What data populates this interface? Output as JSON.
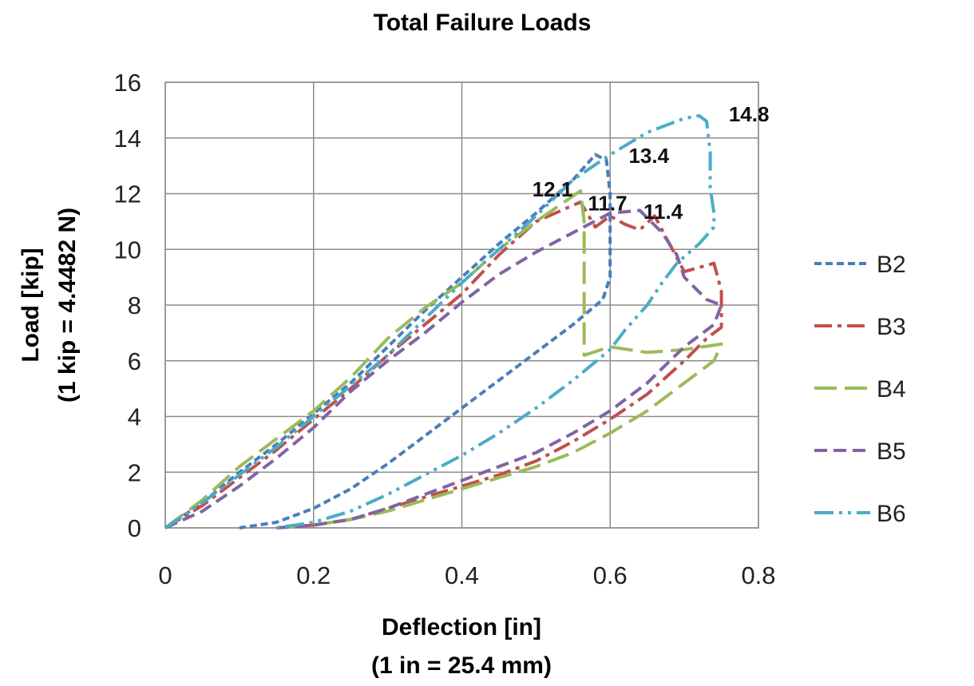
{
  "chart_data": {
    "type": "line",
    "title": "Total Failure Loads",
    "xlabel": "Deflection [in]",
    "xlabel_sub": "(1 in = 25.4 mm)",
    "ylabel": "Load [kip]",
    "ylabel_sub": "(1 kip = 4.4482 N)",
    "xlim": [
      0,
      0.8
    ],
    "ylim": [
      0,
      16
    ],
    "x_ticks": [
      "0",
      "0.2",
      "0.4",
      "0.6",
      "0.8"
    ],
    "y_ticks": [
      "0",
      "2",
      "4",
      "6",
      "8",
      "10",
      "12",
      "14",
      "16"
    ],
    "grid": true,
    "legend_position": "right",
    "series": [
      {
        "name": "B2",
        "color": "#4a7ebb",
        "dash": "short-dash",
        "points": [
          [
            0,
            0
          ],
          [
            0.05,
            0.9
          ],
          [
            0.1,
            2.0
          ],
          [
            0.15,
            3.0
          ],
          [
            0.2,
            4.1
          ],
          [
            0.25,
            5.2
          ],
          [
            0.3,
            6.5
          ],
          [
            0.35,
            7.8
          ],
          [
            0.4,
            9.0
          ],
          [
            0.45,
            10.2
          ],
          [
            0.5,
            11.3
          ],
          [
            0.55,
            12.5
          ],
          [
            0.58,
            13.4
          ],
          [
            0.595,
            13.2
          ],
          [
            0.6,
            12.0
          ],
          [
            0.6,
            10.0
          ],
          [
            0.6,
            9.0
          ],
          [
            0.59,
            8.2
          ],
          [
            0.55,
            7.3
          ],
          [
            0.5,
            6.3
          ],
          [
            0.45,
            5.3
          ],
          [
            0.4,
            4.3
          ],
          [
            0.35,
            3.3
          ],
          [
            0.3,
            2.3
          ],
          [
            0.25,
            1.4
          ],
          [
            0.2,
            0.7
          ],
          [
            0.15,
            0.2
          ],
          [
            0.1,
            0
          ]
        ]
      },
      {
        "name": "B3",
        "color": "#c0504d",
        "dash": "dash-dot",
        "points": [
          [
            0,
            0
          ],
          [
            0.05,
            0.8
          ],
          [
            0.1,
            1.8
          ],
          [
            0.15,
            2.8
          ],
          [
            0.2,
            3.9
          ],
          [
            0.25,
            5.0
          ],
          [
            0.3,
            6.2
          ],
          [
            0.35,
            7.3
          ],
          [
            0.4,
            8.4
          ],
          [
            0.45,
            9.8
          ],
          [
            0.5,
            11.0
          ],
          [
            0.56,
            11.7
          ],
          [
            0.58,
            10.8
          ],
          [
            0.6,
            11.2
          ],
          [
            0.62,
            10.9
          ],
          [
            0.64,
            10.7
          ],
          [
            0.66,
            11.2
          ],
          [
            0.68,
            10.2
          ],
          [
            0.7,
            9.2
          ],
          [
            0.74,
            9.5
          ],
          [
            0.75,
            8.5
          ],
          [
            0.75,
            7.2
          ],
          [
            0.73,
            6.8
          ],
          [
            0.7,
            6.0
          ],
          [
            0.65,
            4.8
          ],
          [
            0.6,
            3.9
          ],
          [
            0.55,
            3.1
          ],
          [
            0.5,
            2.4
          ],
          [
            0.45,
            1.9
          ],
          [
            0.4,
            1.5
          ],
          [
            0.35,
            1.1
          ],
          [
            0.3,
            0.7
          ],
          [
            0.25,
            0.3
          ],
          [
            0.2,
            0.1
          ],
          [
            0.15,
            0
          ]
        ]
      },
      {
        "name": "B4",
        "color": "#9bbb59",
        "dash": "long-dash",
        "points": [
          [
            0,
            0
          ],
          [
            0.05,
            1.0
          ],
          [
            0.1,
            2.2
          ],
          [
            0.15,
            3.2
          ],
          [
            0.2,
            4.2
          ],
          [
            0.25,
            5.4
          ],
          [
            0.3,
            6.8
          ],
          [
            0.35,
            7.9
          ],
          [
            0.4,
            8.8
          ],
          [
            0.45,
            10.0
          ],
          [
            0.5,
            11.0
          ],
          [
            0.56,
            12.1
          ],
          [
            0.565,
            11.0
          ],
          [
            0.565,
            9.5
          ],
          [
            0.565,
            7.5
          ],
          [
            0.565,
            6.2
          ],
          [
            0.6,
            6.5
          ],
          [
            0.65,
            6.3
          ],
          [
            0.7,
            6.4
          ],
          [
            0.75,
            6.6
          ],
          [
            0.74,
            6.0
          ],
          [
            0.7,
            5.2
          ],
          [
            0.65,
            4.2
          ],
          [
            0.6,
            3.4
          ],
          [
            0.55,
            2.7
          ],
          [
            0.5,
            2.2
          ],
          [
            0.45,
            1.8
          ],
          [
            0.4,
            1.4
          ],
          [
            0.35,
            1.0
          ],
          [
            0.3,
            0.6
          ],
          [
            0.25,
            0.3
          ],
          [
            0.2,
            0.1
          ],
          [
            0.15,
            0
          ]
        ]
      },
      {
        "name": "B5",
        "color": "#8064a2",
        "dash": "dash",
        "points": [
          [
            0,
            0
          ],
          [
            0.05,
            0.6
          ],
          [
            0.1,
            1.5
          ],
          [
            0.15,
            2.5
          ],
          [
            0.2,
            3.6
          ],
          [
            0.25,
            4.9
          ],
          [
            0.3,
            6.0
          ],
          [
            0.35,
            7.0
          ],
          [
            0.4,
            8.1
          ],
          [
            0.45,
            9.1
          ],
          [
            0.5,
            9.9
          ],
          [
            0.55,
            10.6
          ],
          [
            0.6,
            11.3
          ],
          [
            0.64,
            11.4
          ],
          [
            0.67,
            10.6
          ],
          [
            0.69,
            9.8
          ],
          [
            0.7,
            9.0
          ],
          [
            0.73,
            8.2
          ],
          [
            0.75,
            8.0
          ],
          [
            0.74,
            7.3
          ],
          [
            0.7,
            6.5
          ],
          [
            0.65,
            5.2
          ],
          [
            0.6,
            4.2
          ],
          [
            0.55,
            3.4
          ],
          [
            0.5,
            2.7
          ],
          [
            0.45,
            2.2
          ],
          [
            0.4,
            1.7
          ],
          [
            0.35,
            1.2
          ],
          [
            0.3,
            0.7
          ],
          [
            0.25,
            0.3
          ],
          [
            0.2,
            0.1
          ],
          [
            0.15,
            0
          ]
        ]
      },
      {
        "name": "B6",
        "color": "#4bacc6",
        "dash": "dash-dot-dot",
        "points": [
          [
            0,
            0
          ],
          [
            0.05,
            0.9
          ],
          [
            0.1,
            1.9
          ],
          [
            0.15,
            2.9
          ],
          [
            0.2,
            4.0
          ],
          [
            0.25,
            5.1
          ],
          [
            0.3,
            6.2
          ],
          [
            0.35,
            7.5
          ],
          [
            0.4,
            8.8
          ],
          [
            0.45,
            10.0
          ],
          [
            0.5,
            11.2
          ],
          [
            0.55,
            12.5
          ],
          [
            0.6,
            13.4
          ],
          [
            0.65,
            14.2
          ],
          [
            0.7,
            14.7
          ],
          [
            0.72,
            14.8
          ],
          [
            0.73,
            14.6
          ],
          [
            0.735,
            13.5
          ],
          [
            0.735,
            12.2
          ],
          [
            0.74,
            11.3
          ],
          [
            0.74,
            10.8
          ],
          [
            0.72,
            10.2
          ],
          [
            0.69,
            9.5
          ],
          [
            0.67,
            8.8
          ],
          [
            0.65,
            8.0
          ],
          [
            0.62,
            7.1
          ],
          [
            0.6,
            6.4
          ],
          [
            0.55,
            5.3
          ],
          [
            0.5,
            4.3
          ],
          [
            0.45,
            3.4
          ],
          [
            0.4,
            2.6
          ],
          [
            0.35,
            1.9
          ],
          [
            0.3,
            1.2
          ],
          [
            0.25,
            0.6
          ],
          [
            0.2,
            0.2
          ],
          [
            0.15,
            0
          ]
        ]
      }
    ],
    "annotations": [
      {
        "text": "14.8",
        "x": 0.76,
        "y": 14.6
      },
      {
        "text": "13.4",
        "x": 0.625,
        "y": 13.1
      },
      {
        "text": "12.1",
        "x": 0.495,
        "y": 11.9
      },
      {
        "text": "11.7",
        "x": 0.57,
        "y": 11.4
      },
      {
        "text": "11.4",
        "x": 0.645,
        "y": 11.1
      }
    ]
  }
}
